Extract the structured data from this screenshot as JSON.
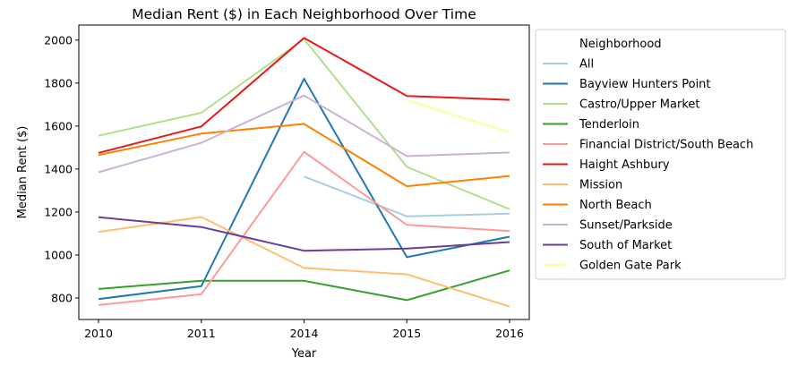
{
  "chart_data": {
    "type": "line",
    "title": "Median Rent ($) in Each Neighborhood Over Time",
    "xlabel": "Year",
    "ylabel": "Median Rent ($)",
    "categories": [
      "2010",
      "2011",
      "2014",
      "2015",
      "2016"
    ],
    "ylim": [
      700,
      2070
    ],
    "yticks": [
      800,
      1000,
      1200,
      1400,
      1600,
      1800,
      2000
    ],
    "legend": {
      "title": "Neighborhood",
      "placement": "outside-right"
    },
    "series": [
      {
        "name": "All",
        "color": "#a6cee3",
        "values": [
          null,
          null,
          1365,
          1180,
          1192
        ]
      },
      {
        "name": "Bayview Hunters Point",
        "color": "#1f78b4",
        "values": [
          795,
          855,
          1820,
          990,
          1085
        ]
      },
      {
        "name": "Castro/Upper Market",
        "color": "#b2df8a",
        "values": [
          1555,
          1662,
          2005,
          1410,
          1213
        ]
      },
      {
        "name": "Tenderloin",
        "color": "#33a02c",
        "values": [
          842,
          880,
          880,
          790,
          928
        ]
      },
      {
        "name": "Financial District/South Beach",
        "color": "#fb9a99",
        "values": [
          767,
          818,
          1480,
          1140,
          1112
        ]
      },
      {
        "name": "Haight Ashbury",
        "color": "#e31a1c",
        "values": [
          1475,
          1598,
          2010,
          1740,
          1722
        ]
      },
      {
        "name": "Mission",
        "color": "#fdbf6f",
        "values": [
          1107,
          1177,
          940,
          910,
          760
        ]
      },
      {
        "name": "North Beach",
        "color": "#ff7f00",
        "values": [
          1465,
          1565,
          1610,
          1320,
          1368
        ]
      },
      {
        "name": "Sunset/Parkside",
        "color": "#cab2d6",
        "values": [
          1385,
          1522,
          1742,
          1460,
          1477
        ]
      },
      {
        "name": "South of Market",
        "color": "#6a3d9a",
        "values": [
          1176,
          1130,
          1020,
          1030,
          1060
        ]
      },
      {
        "name": "Golden Gate Park",
        "color": "#ffff99",
        "values": [
          null,
          null,
          null,
          1720,
          1572
        ]
      }
    ]
  }
}
